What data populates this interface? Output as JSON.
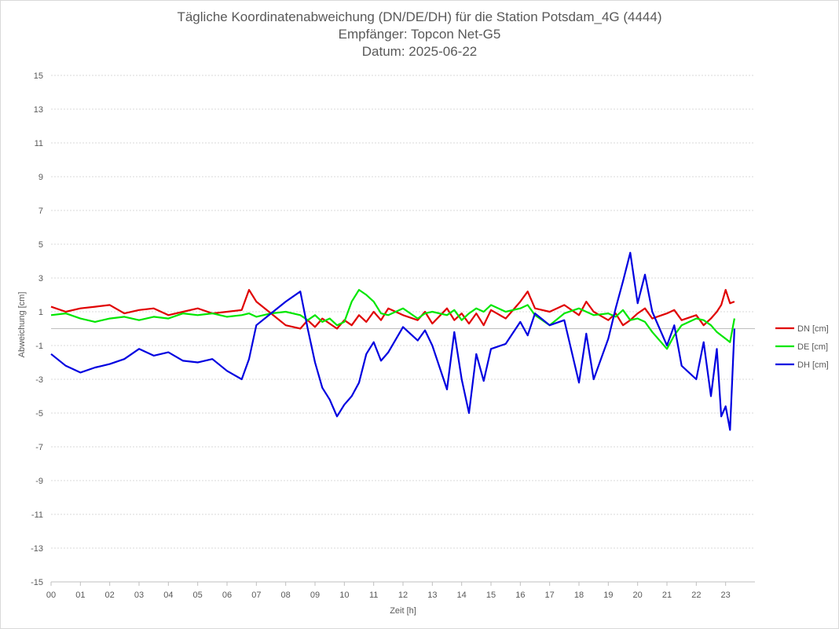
{
  "chart_data": {
    "type": "line",
    "title": "Tägliche Koordinatenabweichung (DN/DE/DH) für die Station Potsdam_4G (4444)",
    "subtitle_1": "Empfänger: Topcon Net-G5",
    "subtitle_2": "Datum: 2025-06-22",
    "xlabel": "Zeit [h]",
    "ylabel": "Abweichung [cm]",
    "xlim": [
      0,
      24
    ],
    "ylim": [
      -15,
      15
    ],
    "x_ticks": [
      "00",
      "01",
      "02",
      "03",
      "04",
      "05",
      "06",
      "07",
      "08",
      "09",
      "10",
      "11",
      "12",
      "13",
      "14",
      "15",
      "16",
      "17",
      "18",
      "19",
      "20",
      "21",
      "22",
      "23"
    ],
    "y_ticks": [
      15,
      13,
      11,
      9,
      7,
      5,
      3,
      1,
      -1,
      -3,
      -5,
      -7,
      -9,
      -11,
      -13,
      -15
    ],
    "grid": "horizontal dotted",
    "legend_position": "right",
    "x": [
      0,
      0.5,
      1,
      1.5,
      2,
      2.5,
      3,
      3.5,
      4,
      4.5,
      5,
      5.5,
      6,
      6.5,
      6.75,
      7,
      7.5,
      8,
      8.5,
      8.75,
      9,
      9.25,
      9.5,
      9.75,
      10,
      10.25,
      10.5,
      10.75,
      11,
      11.25,
      11.5,
      12,
      12.5,
      12.75,
      13,
      13.5,
      13.75,
      14,
      14.25,
      14.5,
      14.75,
      15,
      15.5,
      16,
      16.25,
      16.5,
      17,
      17.5,
      18,
      18.25,
      18.5,
      19,
      19.25,
      19.5,
      19.75,
      20,
      20.25,
      20.5,
      21,
      21.25,
      21.5,
      22,
      22.25,
      22.5,
      22.7,
      22.85,
      23,
      23.15,
      23.3
    ],
    "series": [
      {
        "name": "DN [cm]",
        "color": "#e00000",
        "values": [
          1.3,
          1.0,
          1.2,
          1.3,
          1.4,
          0.9,
          1.1,
          1.2,
          0.8,
          1.0,
          1.2,
          0.9,
          1.0,
          1.1,
          2.3,
          1.6,
          0.9,
          0.2,
          0.0,
          0.5,
          0.1,
          0.6,
          0.3,
          0.0,
          0.5,
          0.2,
          0.8,
          0.4,
          1.0,
          0.5,
          1.2,
          0.8,
          0.5,
          1.0,
          0.3,
          1.2,
          0.5,
          0.9,
          0.3,
          0.9,
          0.2,
          1.1,
          0.6,
          1.6,
          2.2,
          1.2,
          1.0,
          1.4,
          0.8,
          1.6,
          1.0,
          0.5,
          0.9,
          0.2,
          0.5,
          0.9,
          1.2,
          0.6,
          0.9,
          1.1,
          0.5,
          0.8,
          0.2,
          0.6,
          1.0,
          1.4,
          2.3,
          1.5,
          1.6
        ]
      },
      {
        "name": "DE [cm]",
        "color": "#00e600",
        "values": [
          0.8,
          0.9,
          0.6,
          0.4,
          0.6,
          0.7,
          0.5,
          0.7,
          0.6,
          0.9,
          0.8,
          0.9,
          0.7,
          0.8,
          0.9,
          0.7,
          0.9,
          1.0,
          0.8,
          0.5,
          0.8,
          0.4,
          0.6,
          0.2,
          0.4,
          1.6,
          2.3,
          2.0,
          1.6,
          0.9,
          0.8,
          1.2,
          0.6,
          0.9,
          1.0,
          0.8,
          1.1,
          0.5,
          0.9,
          1.2,
          1.0,
          1.4,
          1.0,
          1.2,
          1.4,
          0.8,
          0.2,
          0.9,
          1.2,
          1.0,
          0.8,
          0.9,
          0.7,
          1.1,
          0.5,
          0.6,
          0.4,
          -0.2,
          -1.2,
          -0.4,
          0.2,
          0.6,
          0.5,
          0.2,
          -0.2,
          -0.4,
          -0.6,
          -0.8,
          0.6
        ]
      },
      {
        "name": "DH [cm]",
        "color": "#0000e0",
        "values": [
          -1.5,
          -2.2,
          -2.6,
          -2.3,
          -2.1,
          -1.8,
          -1.2,
          -1.6,
          -1.4,
          -1.9,
          -2.0,
          -1.8,
          -2.5,
          -3.0,
          -1.8,
          0.2,
          0.9,
          1.6,
          2.2,
          0.0,
          -2.0,
          -3.5,
          -4.2,
          -5.2,
          -4.5,
          -4.0,
          -3.2,
          -1.5,
          -0.8,
          -1.9,
          -1.4,
          0.1,
          -0.7,
          -0.1,
          -1.0,
          -3.6,
          -0.2,
          -3.0,
          -5.0,
          -1.5,
          -3.1,
          -1.2,
          -0.9,
          0.4,
          -0.4,
          0.9,
          0.2,
          0.5,
          -3.2,
          -0.3,
          -3.0,
          -0.6,
          1.2,
          2.8,
          4.5,
          1.5,
          3.2,
          1.0,
          -1.0,
          0.2,
          -2.2,
          -3.0,
          -0.8,
          -4.0,
          -1.2,
          -5.2,
          -4.6,
          -6.0,
          0.0
        ]
      }
    ]
  }
}
